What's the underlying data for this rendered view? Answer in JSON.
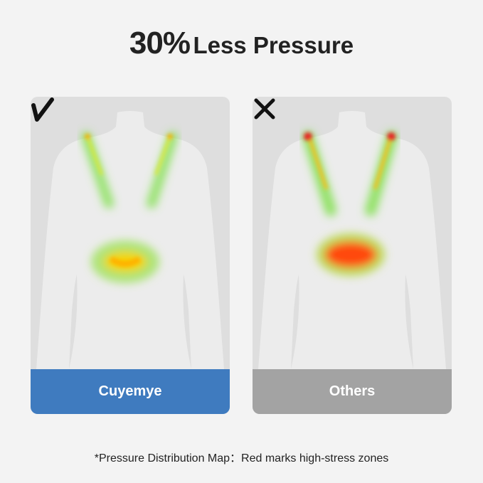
{
  "title": {
    "highlight": "30%",
    "rest": "Less Pressure"
  },
  "panels": [
    {
      "label": "Cuyemye",
      "mark": "check-icon",
      "band_color": "#3f7bbf",
      "heat": "low"
    },
    {
      "label": "Others",
      "mark": "x-icon",
      "band_color": "#a3a3a3",
      "heat": "high"
    }
  ],
  "footnote": "*Pressure Distribution Map：Red marks high-stress zones"
}
